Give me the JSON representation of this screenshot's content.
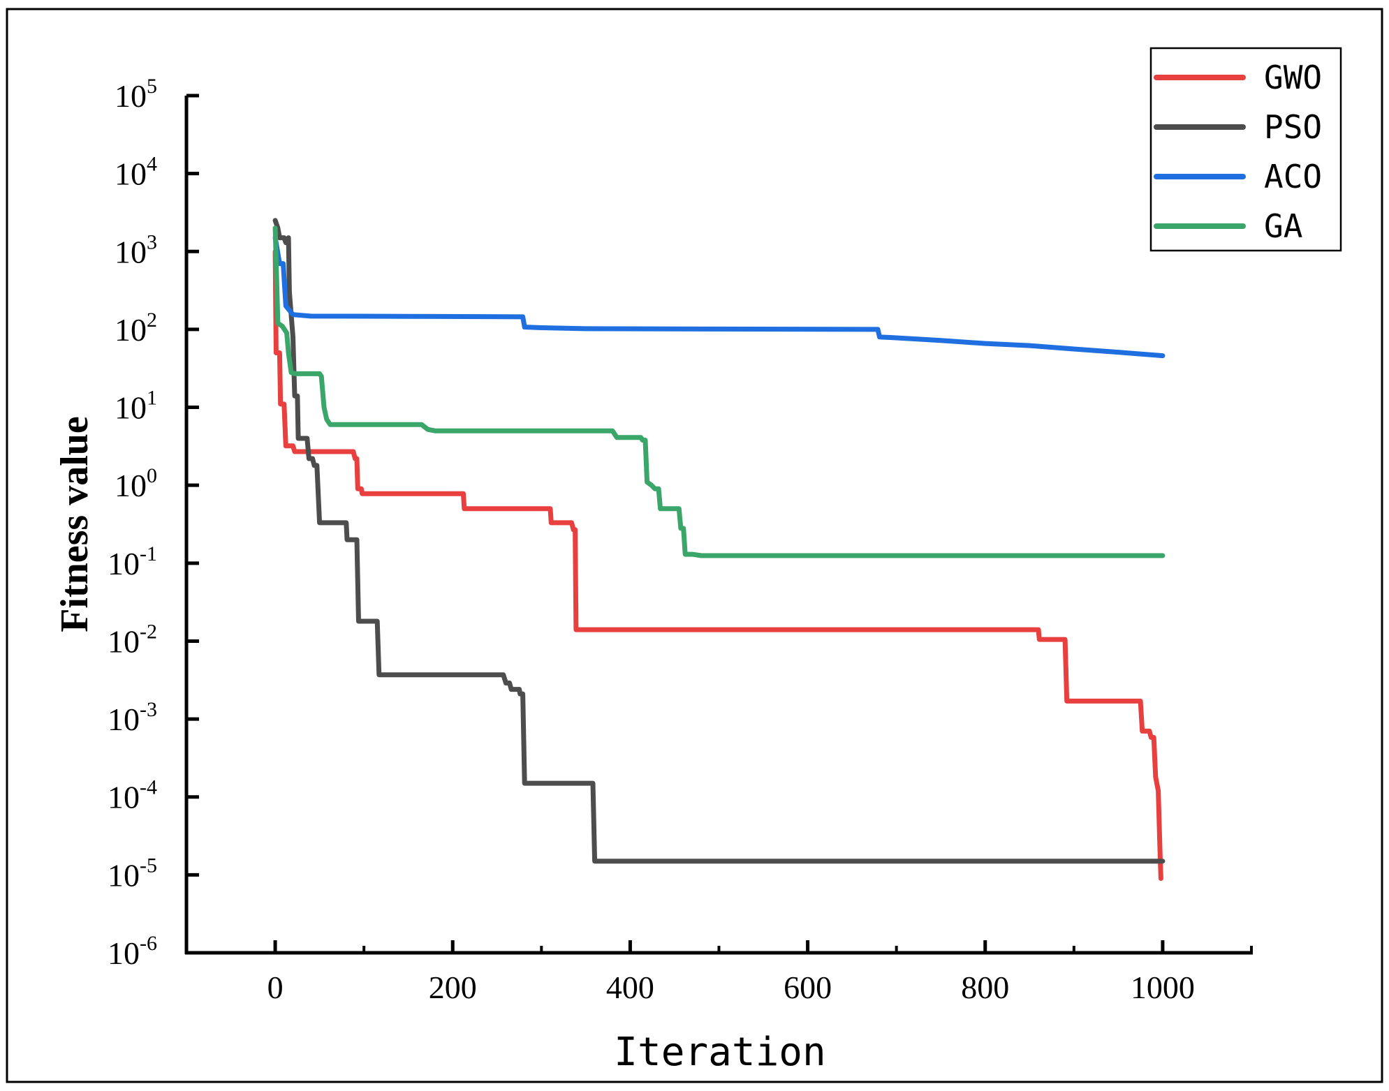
{
  "chart_data": {
    "type": "line",
    "title": "",
    "xlabel": "Iteration",
    "ylabel": "Fitness value",
    "xlim": [
      -100,
      1100
    ],
    "ylim": [
      1e-06,
      100000.0
    ],
    "yscale": "log",
    "x_ticks": [
      0,
      200,
      400,
      600,
      800,
      1000
    ],
    "x_tick_labels": [
      "0",
      "200",
      "400",
      "600",
      "800",
      "1000"
    ],
    "y_ticks": [
      {
        "value": 1e-06,
        "base": "10",
        "exp": "-6"
      },
      {
        "value": 1e-05,
        "base": "10",
        "exp": "-5"
      },
      {
        "value": 0.0001,
        "base": "10",
        "exp": "-4"
      },
      {
        "value": 0.001,
        "base": "10",
        "exp": "-3"
      },
      {
        "value": 0.01,
        "base": "10",
        "exp": "-2"
      },
      {
        "value": 0.1,
        "base": "10",
        "exp": "-1"
      },
      {
        "value": 1.0,
        "base": "10",
        "exp": "0"
      },
      {
        "value": 10.0,
        "base": "10",
        "exp": "1"
      },
      {
        "value": 100.0,
        "base": "10",
        "exp": "2"
      },
      {
        "value": 1000.0,
        "base": "10",
        "exp": "3"
      },
      {
        "value": 10000.0,
        "base": "10",
        "exp": "4"
      },
      {
        "value": 100000.0,
        "base": "10",
        "exp": "5"
      }
    ],
    "grid": false,
    "legend_position": "top-right",
    "series": [
      {
        "name": "GWO",
        "color": "#e8403e",
        "points": [
          [
            0,
            1000
          ],
          [
            1,
            50
          ],
          [
            5,
            50
          ],
          [
            6,
            11
          ],
          [
            10,
            11
          ],
          [
            12,
            3.2
          ],
          [
            20,
            3.2
          ],
          [
            22,
            2.7
          ],
          [
            88,
            2.7
          ],
          [
            90,
            2.2
          ],
          [
            92,
            2.2
          ],
          [
            93,
            0.9
          ],
          [
            97,
            0.9
          ],
          [
            98,
            0.78
          ],
          [
            212,
            0.78
          ],
          [
            213,
            0.5
          ],
          [
            310,
            0.5
          ],
          [
            311,
            0.33
          ],
          [
            334,
            0.33
          ],
          [
            336,
            0.27
          ],
          [
            338,
            0.27
          ],
          [
            339,
            0.014
          ],
          [
            860,
            0.014
          ],
          [
            861,
            0.0105
          ],
          [
            890,
            0.0105
          ],
          [
            892,
            0.0017
          ],
          [
            975,
            0.0017
          ],
          [
            977,
            0.0007
          ],
          [
            985,
            0.0007
          ],
          [
            987,
            0.00058
          ],
          [
            990,
            0.00058
          ],
          [
            992,
            0.00018
          ],
          [
            995,
            0.00012
          ],
          [
            997,
            2e-05
          ],
          [
            998,
            9e-06
          ]
        ]
      },
      {
        "name": "PSO",
        "color": "#4d4d4d",
        "points": [
          [
            0,
            2500
          ],
          [
            3,
            2000
          ],
          [
            5,
            1500
          ],
          [
            10,
            1500
          ],
          [
            12,
            1300
          ],
          [
            15,
            1500
          ],
          [
            16,
            300
          ],
          [
            20,
            80
          ],
          [
            22,
            14
          ],
          [
            25,
            14
          ],
          [
            26,
            4
          ],
          [
            36,
            4
          ],
          [
            38,
            2.2
          ],
          [
            42,
            2.2
          ],
          [
            44,
            1.8
          ],
          [
            47,
            1.8
          ],
          [
            50,
            0.33
          ],
          [
            80,
            0.33
          ],
          [
            81,
            0.2
          ],
          [
            92,
            0.2
          ],
          [
            94,
            0.018
          ],
          [
            115,
            0.018
          ],
          [
            117,
            0.0037
          ],
          [
            257,
            0.0037
          ],
          [
            260,
            0.0029
          ],
          [
            264,
            0.0029
          ],
          [
            266,
            0.0024
          ],
          [
            275,
            0.0024
          ],
          [
            276,
            0.0021
          ],
          [
            279,
            0.0021
          ],
          [
            281,
            0.00015
          ],
          [
            358,
            0.00015
          ],
          [
            360,
            1.5e-05
          ],
          [
            1000,
            1.5e-05
          ]
        ]
      },
      {
        "name": "ACO",
        "color": "#1f6fe0",
        "points": [
          [
            0,
            1500
          ],
          [
            5,
            700
          ],
          [
            9,
            700
          ],
          [
            12,
            200
          ],
          [
            20,
            155
          ],
          [
            40,
            148
          ],
          [
            150,
            147
          ],
          [
            279,
            145
          ],
          [
            281,
            107
          ],
          [
            300,
            105
          ],
          [
            350,
            102
          ],
          [
            500,
            101
          ],
          [
            679,
            100
          ],
          [
            681,
            80
          ],
          [
            700,
            78
          ],
          [
            750,
            72
          ],
          [
            800,
            66
          ],
          [
            850,
            62
          ],
          [
            900,
            56
          ],
          [
            950,
            51
          ],
          [
            1000,
            46
          ]
        ]
      },
      {
        "name": "GA",
        "color": "#3aa66a",
        "points": [
          [
            0,
            2000
          ],
          [
            3,
            120
          ],
          [
            8,
            110
          ],
          [
            13,
            90
          ],
          [
            15,
            50
          ],
          [
            18,
            28
          ],
          [
            22,
            27
          ],
          [
            50,
            27
          ],
          [
            52,
            25
          ],
          [
            55,
            10
          ],
          [
            58,
            7
          ],
          [
            62,
            6
          ],
          [
            165,
            6
          ],
          [
            172,
            5.2
          ],
          [
            180,
            5
          ],
          [
            380,
            5
          ],
          [
            385,
            4.1
          ],
          [
            412,
            4.1
          ],
          [
            414,
            3.8
          ],
          [
            417,
            3.8
          ],
          [
            419,
            1.1
          ],
          [
            424,
            1.0
          ],
          [
            428,
            0.9
          ],
          [
            432,
            0.9
          ],
          [
            434,
            0.5
          ],
          [
            455,
            0.5
          ],
          [
            457,
            0.28
          ],
          [
            460,
            0.28
          ],
          [
            462,
            0.13
          ],
          [
            470,
            0.13
          ],
          [
            480,
            0.125
          ],
          [
            1000,
            0.125
          ]
        ]
      }
    ]
  }
}
